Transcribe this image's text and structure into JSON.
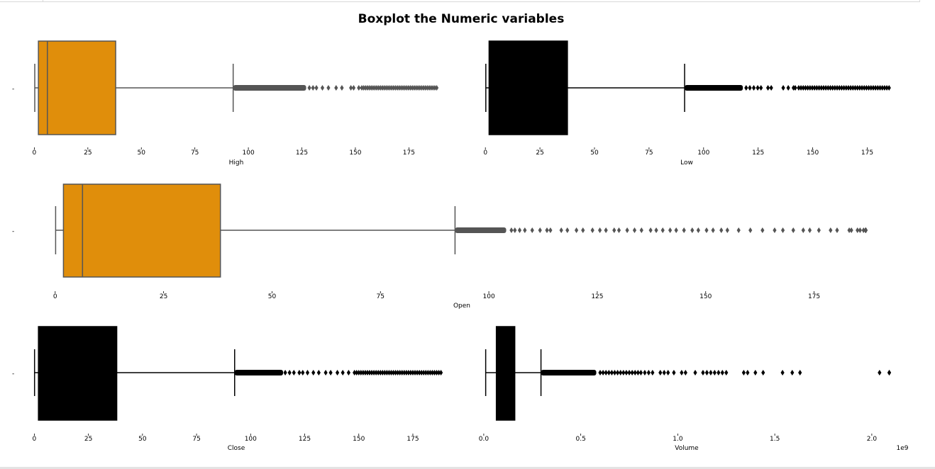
{
  "figure": {
    "title": "Boxplot the Numeric variables"
  },
  "chart_data": [
    {
      "type": "boxplot",
      "orientation": "horizontal",
      "variable": "High",
      "xlabel": "High",
      "xlim": [
        -1.5,
        188
      ],
      "xticks": [
        0,
        25,
        50,
        75,
        100,
        125,
        150,
        175
      ],
      "box_color": "#e08e0b",
      "line_color": "#555555",
      "whisker_low": 0.2,
      "q1": 1.9,
      "median": 6.1,
      "q3": 38.0,
      "whisker_high": 92.9,
      "outliers": {
        "start": 92.9,
        "end": 188.0,
        "dense_until": 127,
        "scatter": [
          128.5,
          130.2,
          131.8,
          134.6,
          137.4,
          141.0,
          143.7,
          147.9,
          149.2,
          151.6,
          153.0
        ]
      }
    },
    {
      "type": "boxplot",
      "orientation": "horizontal",
      "variable": "Low",
      "xlabel": "Low",
      "xlim": [
        -1.5,
        188
      ],
      "xticks": [
        0,
        25,
        50,
        75,
        100,
        125,
        150,
        175
      ],
      "box_color": "#000000",
      "line_color": "#000000",
      "whisker_low": 0.2,
      "q1": 1.7,
      "median": 6.0,
      "q3": 37.6,
      "whisker_high": 91.3,
      "outliers": {
        "start": 91.3,
        "end": 185.0,
        "dense_until": 118,
        "scatter": [
          119.5,
          121.2,
          123.0,
          124.8,
          126.3,
          129.5,
          131.0,
          136.5,
          138.8,
          141.2,
          142.0,
          143.6
        ]
      }
    },
    {
      "type": "boxplot",
      "orientation": "horizontal",
      "variable": "Open",
      "xlabel": "Open",
      "xlim": [
        -4.5,
        193
      ],
      "xticks": [
        0,
        25,
        50,
        75,
        100,
        125,
        150,
        175
      ],
      "box_color": "#e08e0b",
      "line_color": "#555555",
      "whisker_low": 0.1,
      "q1": 1.9,
      "median": 6.3,
      "q3": 38.1,
      "whisker_high": 92.2,
      "outliers": {
        "start": 92.2,
        "end": 186.9,
        "dense_until": 104,
        "scatter": [
          105.2,
          106.0,
          107.1,
          108.3,
          110.0,
          111.8,
          113.4,
          114.2,
          116.7,
          118.1,
          120.2,
          121.7,
          123.9,
          125.6,
          127.0,
          128.9,
          130.0,
          131.9,
          133.6,
          135.2,
          137.3,
          138.6,
          140.1,
          141.8,
          143.2,
          145.0,
          146.9,
          148.3,
          150.2,
          151.7,
          153.6,
          155.0,
          157.6,
          160.3,
          163.1,
          165.9,
          167.8,
          170.2,
          172.5,
          174.0,
          176.1,
          178.8,
          180.3,
          183.1,
          183.6,
          185.0,
          185.6,
          186.4,
          186.9
        ]
      }
    },
    {
      "type": "boxplot",
      "orientation": "horizontal",
      "variable": "Close",
      "xlabel": "Close",
      "xlim": [
        -1.5,
        188
      ],
      "xticks": [
        0,
        25,
        50,
        75,
        100,
        125,
        150,
        175
      ],
      "box_color": "#000000",
      "line_color": "#000000",
      "whisker_low": 0.1,
      "q1": 1.9,
      "median": 6.1,
      "q3": 38.1,
      "whisker_high": 92.6,
      "outliers": {
        "start": 92.6,
        "end": 188.0,
        "dense_until": 115,
        "scatter": [
          116.0,
          118.0,
          120.0,
          122.5,
          124.1,
          126.3,
          129.0,
          131.5,
          134.7,
          137.0,
          140.1,
          142.6,
          145.3,
          148.0
        ]
      }
    },
    {
      "type": "boxplot",
      "orientation": "horizontal",
      "variable": "Volume",
      "xlabel": "Volume",
      "xlim": [
        -0.0057,
        2.1
      ],
      "xticks": [
        0.0,
        0.5,
        1.0,
        1.5,
        2.0
      ],
      "tick_labels": [
        "0.0",
        "0.5",
        "1.0",
        "1.5",
        "2.0"
      ],
      "offset_text": "1e9",
      "box_color": "#000000",
      "line_color": "#000000",
      "whisker_low": 0.01,
      "q1": 0.065,
      "median": 0.11,
      "q3": 0.16,
      "whisker_high": 0.295,
      "outliers": {
        "start": 0.295,
        "end": 2.09,
        "dense_until": 0.58,
        "scatter": [
          0.6,
          0.615,
          0.63,
          0.645,
          0.66,
          0.675,
          0.69,
          0.705,
          0.72,
          0.735,
          0.75,
          0.765,
          0.78,
          0.795,
          0.81,
          0.83,
          0.85,
          0.87,
          0.91,
          0.93,
          0.95,
          0.98,
          1.02,
          1.04,
          1.09,
          1.13,
          1.15,
          1.17,
          1.19,
          1.21,
          1.23,
          1.25,
          1.34,
          1.36,
          1.4,
          1.44,
          1.54,
          1.59,
          1.63,
          2.04,
          2.09
        ]
      }
    }
  ]
}
